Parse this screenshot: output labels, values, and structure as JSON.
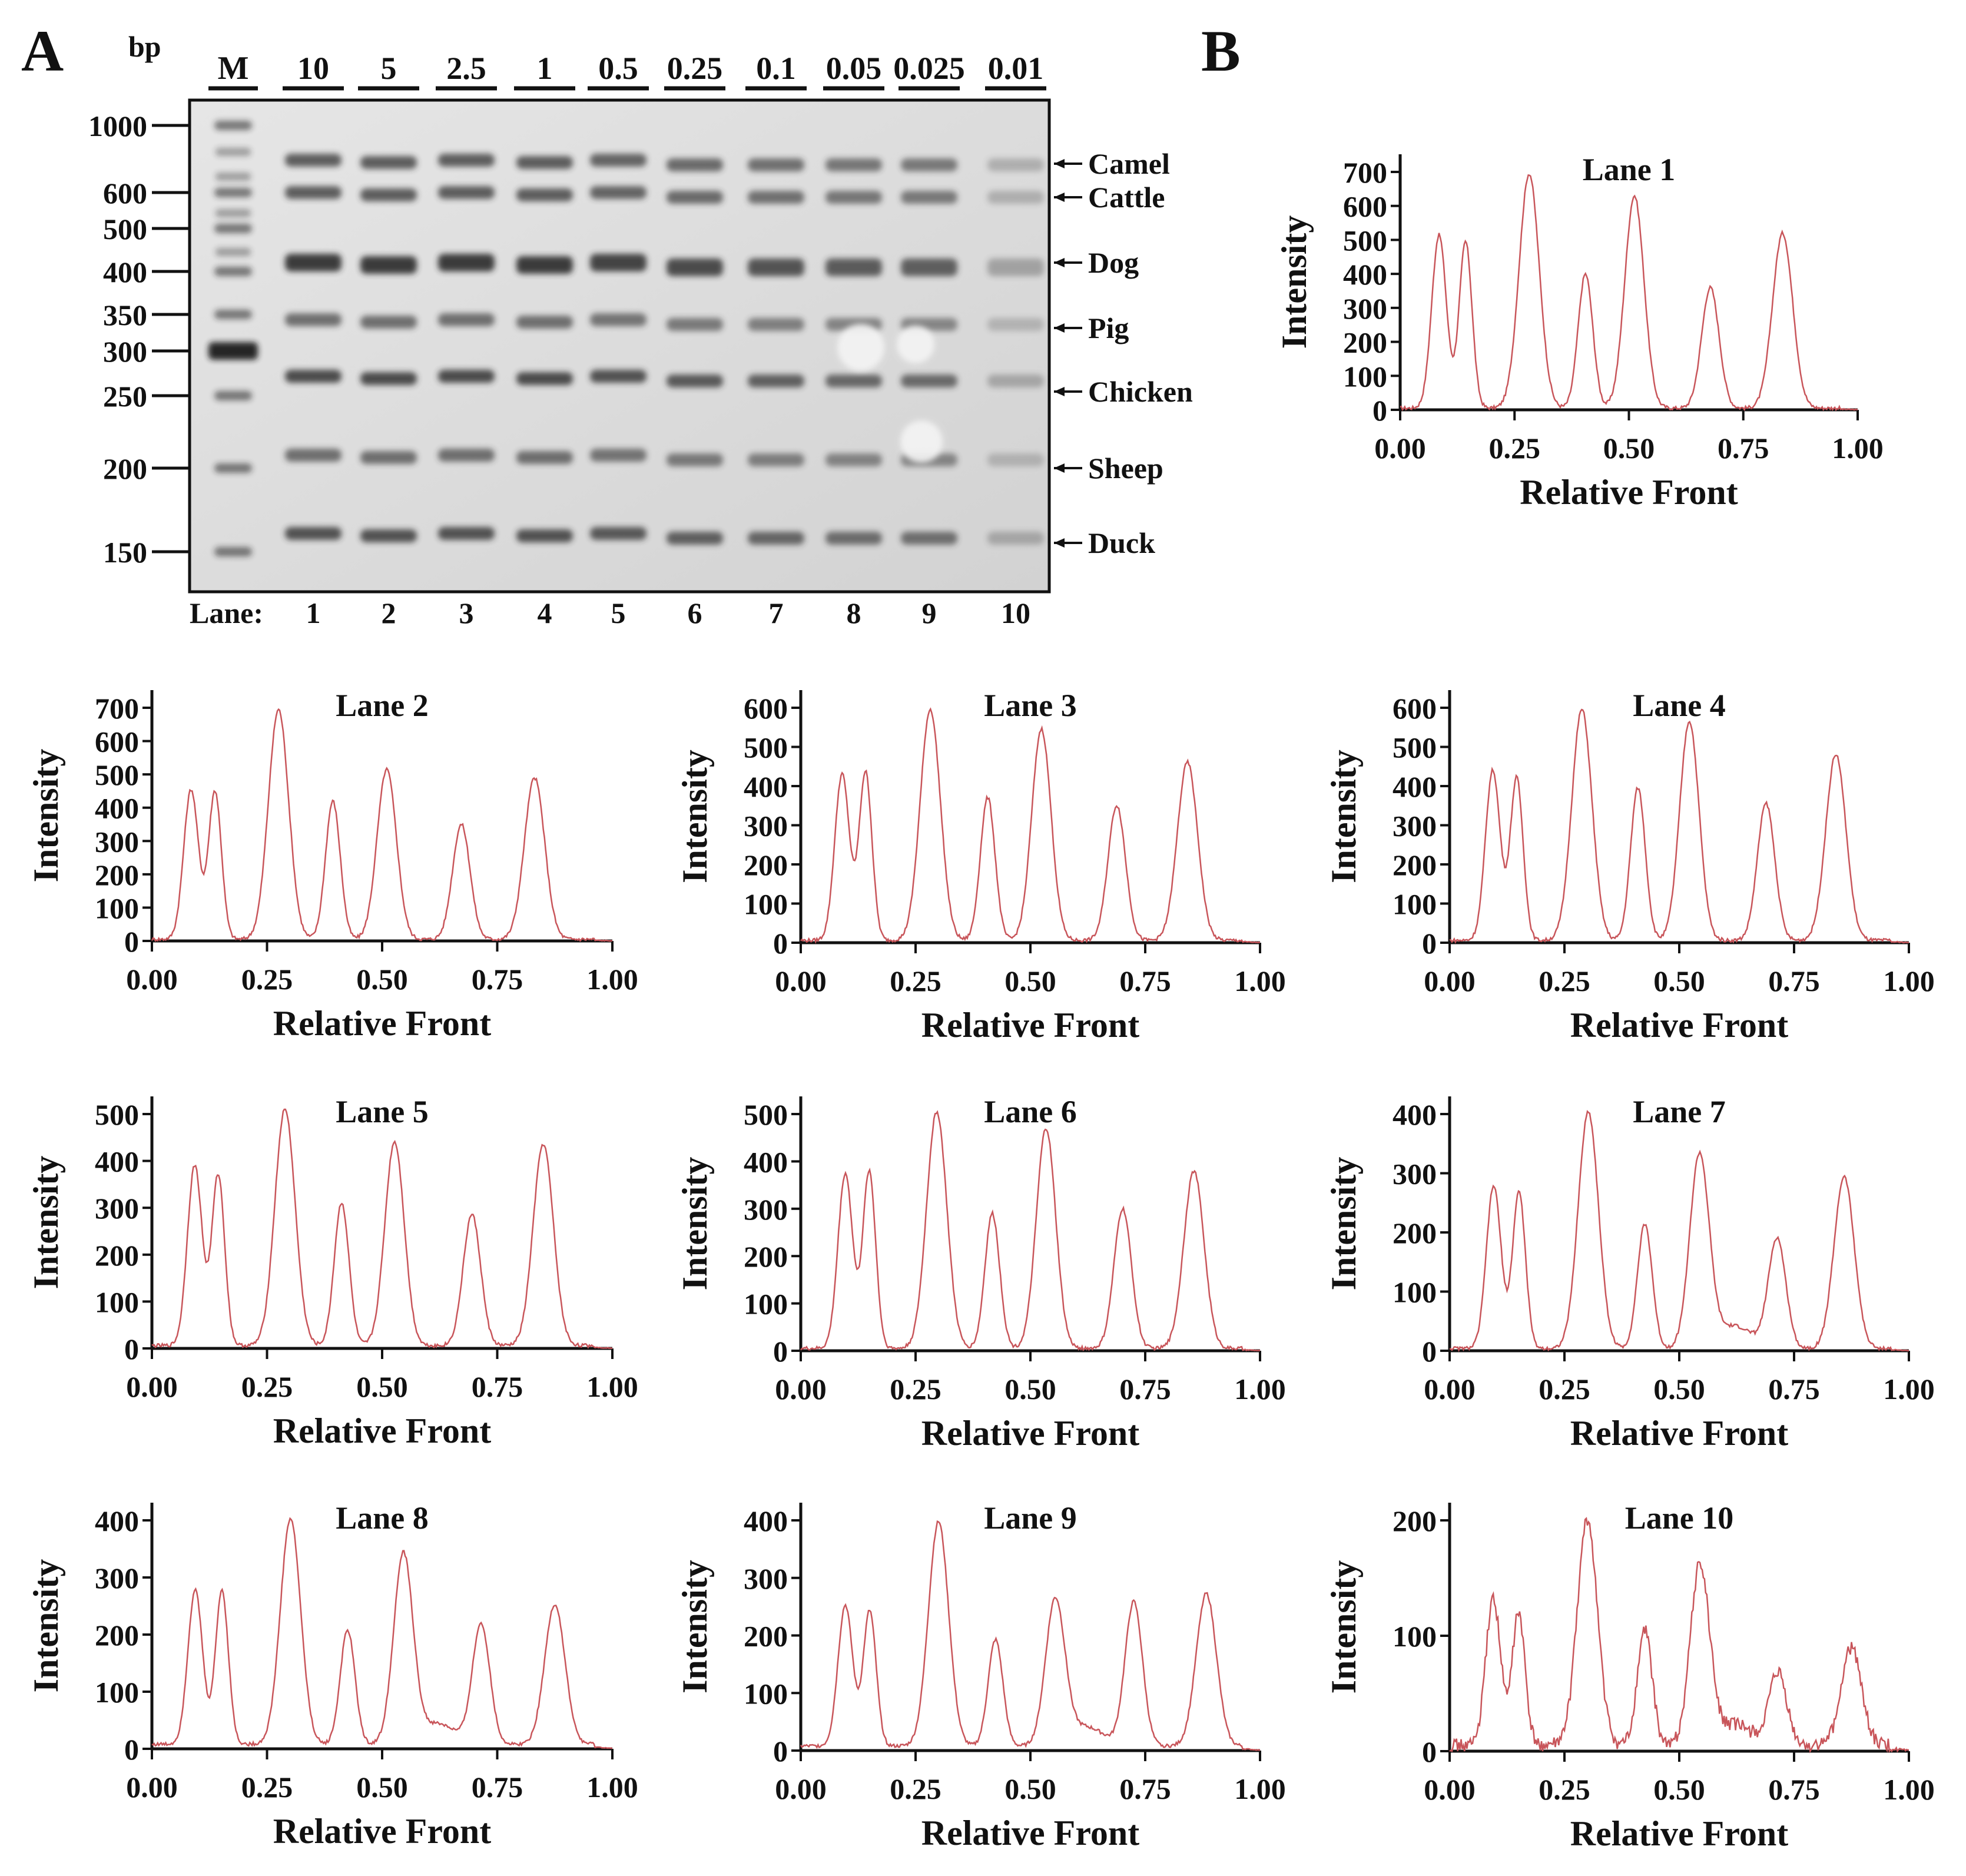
{
  "panels": {
    "a_letter": "A",
    "b_letter": "B"
  },
  "gel": {
    "bp_label": "bp",
    "marker_label": "M",
    "lane_prefix": "Lane:",
    "concentrations": [
      "10",
      "5",
      "2.5",
      "1",
      "0.5",
      "0.25",
      "0.1",
      "0.05",
      "0.025",
      "0.01"
    ],
    "lane_numbers": [
      "1",
      "2",
      "3",
      "4",
      "5",
      "6",
      "7",
      "8",
      "9",
      "10"
    ],
    "ladder": [
      {
        "label": "1000",
        "bp": 1000
      },
      {
        "label": "600",
        "bp": 600
      },
      {
        "label": "500",
        "bp": 500
      },
      {
        "label": "400",
        "bp": 400
      },
      {
        "label": "350",
        "bp": 350
      },
      {
        "label": "300",
        "bp": 300
      },
      {
        "label": "250",
        "bp": 250
      },
      {
        "label": "200",
        "bp": 200
      },
      {
        "label": "150",
        "bp": 150
      }
    ],
    "species_bands": [
      "Camel",
      "Cattle",
      "Dog",
      "Pig",
      "Chicken",
      "Sheep",
      "Duck"
    ],
    "colors": {
      "gel_bg": "#dcdcdc",
      "band": "#2a2a2a"
    }
  },
  "chart_data": [
    {
      "type": "line",
      "title": "Lane 1",
      "xlabel": "Relative Front",
      "ylabel": "Intensity",
      "xlim": [
        0,
        1
      ],
      "ylim": [
        0,
        700
      ],
      "yticks": [
        "0",
        "100",
        "200",
        "300",
        "400",
        "500",
        "600",
        "700"
      ],
      "xticks": [
        "0.00",
        "0.25",
        "0.50",
        "0.75",
        "1.00"
      ],
      "peaks": [
        [
          0.085,
          510
        ],
        [
          0.143,
          490
        ],
        [
          0.282,
          690
        ],
        [
          0.405,
          395
        ],
        [
          0.512,
          625
        ],
        [
          0.678,
          355
        ],
        [
          0.836,
          515
        ]
      ],
      "baseline": 5,
      "color": "#c8555a"
    },
    {
      "type": "line",
      "title": "Lane 2",
      "xlabel": "Relative Front",
      "ylabel": "Intensity",
      "xlim": [
        0,
        1
      ],
      "ylim": [
        0,
        700
      ],
      "yticks": [
        "0",
        "100",
        "200",
        "300",
        "400",
        "500",
        "600",
        "700"
      ],
      "xticks": [
        "0.00",
        "0.25",
        "0.50",
        "0.75",
        "1.00"
      ],
      "peaks": [
        [
          0.085,
          450
        ],
        [
          0.137,
          445
        ],
        [
          0.275,
          690
        ],
        [
          0.393,
          415
        ],
        [
          0.51,
          510
        ],
        [
          0.672,
          345
        ],
        [
          0.831,
          485
        ]
      ],
      "baseline": 5,
      "color": "#c8555a"
    },
    {
      "type": "line",
      "title": "Lane 3",
      "xlabel": "Relative Front",
      "ylabel": "Intensity",
      "xlim": [
        0,
        1
      ],
      "ylim": [
        0,
        600
      ],
      "yticks": [
        "0",
        "100",
        "200",
        "300",
        "400",
        "500",
        "600"
      ],
      "xticks": [
        "0.00",
        "0.25",
        "0.50",
        "0.75",
        "1.00"
      ],
      "peaks": [
        [
          0.09,
          425
        ],
        [
          0.141,
          430
        ],
        [
          0.282,
          590
        ],
        [
          0.407,
          365
        ],
        [
          0.524,
          540
        ],
        [
          0.688,
          345
        ],
        [
          0.842,
          455
        ]
      ],
      "baseline": 6,
      "color": "#c8555a"
    },
    {
      "type": "line",
      "title": "Lane 4",
      "xlabel": "Relative Front",
      "ylabel": "Intensity",
      "xlim": [
        0,
        1
      ],
      "ylim": [
        0,
        600
      ],
      "yticks": [
        "0",
        "100",
        "200",
        "300",
        "400",
        "500",
        "600"
      ],
      "xticks": [
        "0.00",
        "0.25",
        "0.50",
        "0.75",
        "1.00"
      ],
      "peaks": [
        [
          0.094,
          435
        ],
        [
          0.146,
          415
        ],
        [
          0.288,
          590
        ],
        [
          0.41,
          390
        ],
        [
          0.522,
          560
        ],
        [
          0.689,
          350
        ],
        [
          0.841,
          475
        ]
      ],
      "baseline": 6,
      "color": "#c8555a"
    },
    {
      "type": "line",
      "title": "Lane 5",
      "xlabel": "Relative Front",
      "ylabel": "Intensity",
      "xlim": [
        0,
        1
      ],
      "ylim": [
        0,
        500
      ],
      "yticks": [
        "0",
        "100",
        "200",
        "300",
        "400",
        "500"
      ],
      "xticks": [
        "0.00",
        "0.25",
        "0.50",
        "0.75",
        "1.00"
      ],
      "peaks": [
        [
          0.093,
          385
        ],
        [
          0.144,
          365
        ],
        [
          0.289,
          505
        ],
        [
          0.412,
          305
        ],
        [
          0.527,
          435
        ],
        [
          0.695,
          280
        ],
        [
          0.85,
          430
        ]
      ],
      "baseline": 6,
      "color": "#c8555a"
    },
    {
      "type": "line",
      "title": "Lane 6",
      "xlabel": "Relative Front",
      "ylabel": "Intensity",
      "xlim": [
        0,
        1
      ],
      "ylim": [
        0,
        500
      ],
      "yticks": [
        "0",
        "100",
        "200",
        "300",
        "400",
        "500"
      ],
      "xticks": [
        "0.00",
        "0.25",
        "0.50",
        "0.75",
        "1.00"
      ],
      "peaks": [
        [
          0.097,
          370
        ],
        [
          0.149,
          375
        ],
        [
          0.296,
          500
        ],
        [
          0.417,
          285
        ],
        [
          0.534,
          465
        ],
        [
          0.701,
          295
        ],
        [
          0.856,
          375
        ]
      ],
      "baseline": 5,
      "color": "#c8555a"
    },
    {
      "type": "line",
      "title": "Lane 7",
      "xlabel": "Relative Front",
      "ylabel": "Intensity",
      "xlim": [
        0,
        1
      ],
      "ylim": [
        0,
        400
      ],
      "yticks": [
        "0",
        "100",
        "200",
        "300",
        "400"
      ],
      "xticks": [
        "0.00",
        "0.25",
        "0.50",
        "0.75",
        "1.00"
      ],
      "peaks": [
        [
          0.096,
          275
        ],
        [
          0.151,
          265
        ],
        [
          0.302,
          400
        ],
        [
          0.425,
          210
        ],
        [
          0.544,
          325
        ],
        [
          0.713,
          185
        ],
        [
          0.859,
          290
        ]
      ],
      "baseline": 4,
      "color": "#c8555a"
    },
    {
      "type": "line",
      "title": "Lane 8",
      "xlabel": "Relative Front",
      "ylabel": "Intensity",
      "xlim": [
        0,
        1
      ],
      "ylim": [
        0,
        400
      ],
      "yticks": [
        "0",
        "100",
        "200",
        "300",
        "400"
      ],
      "xticks": [
        "0.00",
        "0.25",
        "0.50",
        "0.75",
        "1.00"
      ],
      "peaks": [
        [
          0.094,
          270
        ],
        [
          0.152,
          270
        ],
        [
          0.301,
          395
        ],
        [
          0.425,
          200
        ],
        [
          0.546,
          330
        ],
        [
          0.715,
          210
        ],
        [
          0.875,
          245
        ]
      ],
      "baseline": 8,
      "color": "#c8555a"
    },
    {
      "type": "line",
      "title": "Lane 9",
      "xlabel": "Relative Front",
      "ylabel": "Intensity",
      "xlim": [
        0,
        1
      ],
      "ylim": [
        0,
        400
      ],
      "yticks": [
        "0",
        "100",
        "200",
        "300",
        "400"
      ],
      "xticks": [
        "0.00",
        "0.25",
        "0.50",
        "0.75",
        "1.00"
      ],
      "peaks": [
        [
          0.097,
          245
        ],
        [
          0.15,
          235
        ],
        [
          0.3,
          390
        ],
        [
          0.424,
          185
        ],
        [
          0.554,
          250
        ],
        [
          0.725,
          250
        ],
        [
          0.883,
          265
        ]
      ],
      "baseline": 8,
      "color": "#c8555a"
    },
    {
      "type": "line",
      "title": "Lane 10",
      "xlabel": "Relative Front",
      "ylabel": "Intensity",
      "xlim": [
        0,
        1
      ],
      "ylim": [
        0,
        200
      ],
      "yticks": [
        "0",
        "100",
        "200"
      ],
      "xticks": [
        "0.00",
        "0.25",
        "0.50",
        "0.75",
        "1.00"
      ],
      "peaks": [
        [
          0.095,
          128
        ],
        [
          0.15,
          115
        ],
        [
          0.3,
          195
        ],
        [
          0.425,
          100
        ],
        [
          0.545,
          155
        ],
        [
          0.715,
          62
        ],
        [
          0.875,
          85
        ]
      ],
      "baseline": 5,
      "color": "#c8555a"
    }
  ]
}
